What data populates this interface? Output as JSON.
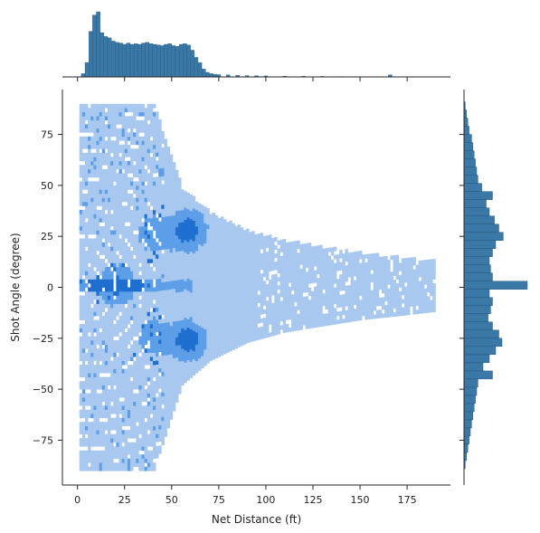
{
  "chart_data": {
    "type": "heatmap",
    "kind": "joint-plot (2D histogram with marginal histograms)",
    "title": "",
    "xlabel": "Net Distance (ft)",
    "ylabel": "Shot Angle (degree)",
    "xlim": [
      -8,
      198
    ],
    "ylim": [
      -97,
      97
    ],
    "x_ticks": [
      0,
      25,
      50,
      75,
      100,
      125,
      150,
      175
    ],
    "y_ticks": [
      -75,
      -50,
      -25,
      0,
      25,
      50,
      75
    ],
    "grid": false,
    "colors": {
      "light": "#a9c8ef",
      "mid": "#5c9ee8",
      "dark": "#1f6fd0",
      "marginal": "#3a78a8",
      "marginal_edge": "#1f4e73"
    },
    "envelope_upper": [
      [
        1,
        89
      ],
      [
        40,
        89
      ],
      [
        55,
        48
      ],
      [
        70,
        36
      ],
      [
        90,
        27
      ],
      [
        110,
        22
      ],
      [
        130,
        19
      ],
      [
        150,
        16
      ],
      [
        170,
        14
      ],
      [
        189,
        12
      ]
    ],
    "envelope_lower": [
      [
        1,
        -90
      ],
      [
        40,
        -90
      ],
      [
        55,
        -48
      ],
      [
        70,
        -36
      ],
      [
        90,
        -27
      ],
      [
        110,
        -22
      ],
      [
        130,
        -19
      ],
      [
        150,
        -16
      ],
      [
        170,
        -14
      ],
      [
        189,
        -12
      ]
    ],
    "hotspots": [
      {
        "x": 58,
        "y": 27,
        "weight": 1.0
      },
      {
        "x": 58,
        "y": -27,
        "weight": 1.0
      },
      {
        "x": 40,
        "y": 25,
        "weight": 0.6
      },
      {
        "x": 40,
        "y": -25,
        "weight": 0.6
      },
      {
        "x": 20,
        "y": 0,
        "weight": 0.9
      }
    ],
    "marginal_x": {
      "bin_centers": [
        3,
        5,
        7,
        9,
        11,
        13,
        15,
        17,
        19,
        21,
        23,
        25,
        27,
        29,
        31,
        33,
        35,
        37,
        39,
        41,
        43,
        45,
        47,
        49,
        51,
        53,
        55,
        57,
        59,
        61,
        63,
        65,
        67,
        69,
        71,
        73,
        75,
        80,
        85,
        90,
        95,
        100,
        110,
        120,
        130,
        140,
        150,
        160,
        166,
        175,
        185
      ],
      "counts": [
        0.05,
        0.22,
        0.7,
        0.95,
        1.0,
        0.68,
        0.62,
        0.6,
        0.55,
        0.53,
        0.52,
        0.5,
        0.52,
        0.5,
        0.51,
        0.5,
        0.52,
        0.53,
        0.51,
        0.5,
        0.49,
        0.48,
        0.5,
        0.51,
        0.48,
        0.47,
        0.5,
        0.51,
        0.49,
        0.41,
        0.3,
        0.22,
        0.12,
        0.07,
        0.05,
        0.04,
        0.035,
        0.03,
        0.025,
        0.02,
        0.018,
        0.015,
        0.012,
        0.01,
        0.008,
        0.006,
        0.005,
        0.004,
        0.03,
        0.004,
        0.003
      ]
    },
    "marginal_y": {
      "bin_centers": [
        -87,
        -83,
        -79,
        -75,
        -71,
        -67,
        -63,
        -59,
        -55,
        -51,
        -47,
        -43,
        -39,
        -35,
        -31,
        -27,
        -23,
        -19,
        -15,
        -11,
        -7,
        -3,
        1,
        5,
        9,
        13,
        17,
        21,
        25,
        29,
        33,
        37,
        41,
        45,
        49,
        53,
        57,
        61,
        65,
        69,
        73,
        77,
        81,
        85,
        89
      ],
      "counts": [
        0.02,
        0.04,
        0.06,
        0.08,
        0.1,
        0.12,
        0.14,
        0.16,
        0.18,
        0.2,
        0.22,
        0.45,
        0.3,
        0.4,
        0.5,
        0.6,
        0.55,
        0.45,
        0.38,
        0.42,
        0.45,
        0.4,
        1.0,
        0.45,
        0.42,
        0.4,
        0.45,
        0.5,
        0.62,
        0.55,
        0.48,
        0.4,
        0.35,
        0.45,
        0.28,
        0.22,
        0.2,
        0.18,
        0.16,
        0.14,
        0.12,
        0.08,
        0.06,
        0.04,
        0.02
      ]
    }
  }
}
